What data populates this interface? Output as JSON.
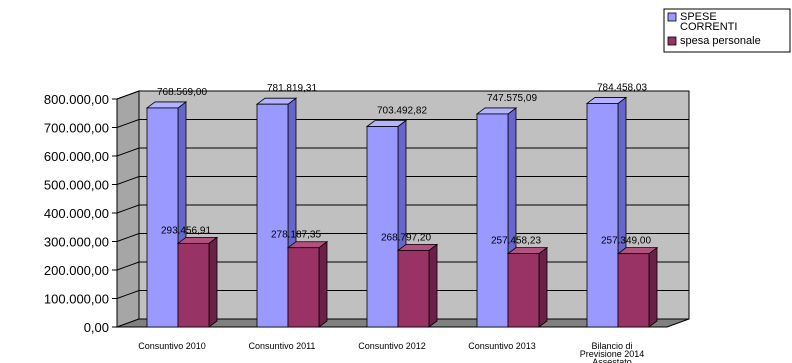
{
  "chart_data": {
    "type": "bar",
    "categories": [
      [
        "Consuntivo 2010"
      ],
      [
        "Consuntivo 2011"
      ],
      [
        "Consuntivo 2012"
      ],
      [
        "Consuntivo 2013"
      ],
      [
        "Bilancio di",
        "Previsione 2014",
        "Assestato"
      ]
    ],
    "series": [
      {
        "name": [
          "SPESE",
          "CORRENTI"
        ],
        "values": [
          768569.0,
          781819.31,
          703492.82,
          747575.09,
          784458.03
        ],
        "labels": [
          "768.569,00",
          "781.819,31",
          "703.492,82",
          "747.575,09",
          "784.458,03"
        ],
        "color_front": "#9999ff",
        "color_side": "#6666cc",
        "color_top": "#b3b3ff"
      },
      {
        "name": [
          "spesa personale"
        ],
        "values": [
          293456.91,
          278187.35,
          268797.2,
          257458.23,
          257349.0
        ],
        "labels": [
          "293.456,91",
          "278.187,35",
          "268.797,20",
          "257.458,23",
          "257.349,00"
        ],
        "color_front": "#993366",
        "color_side": "#6b2147",
        "color_top": "#b3507f"
      }
    ],
    "yticks": [
      "0,00",
      "100.000,00",
      "200.000,00",
      "300.000,00",
      "400.000,00",
      "500.000,00",
      "600.000,00",
      "700.000,00",
      "800.000,00"
    ],
    "ylim": [
      0,
      800000
    ],
    "grid": true,
    "legend_position": "top-right",
    "wall_color": "#c0c0c0",
    "floor_color": "#808080"
  }
}
